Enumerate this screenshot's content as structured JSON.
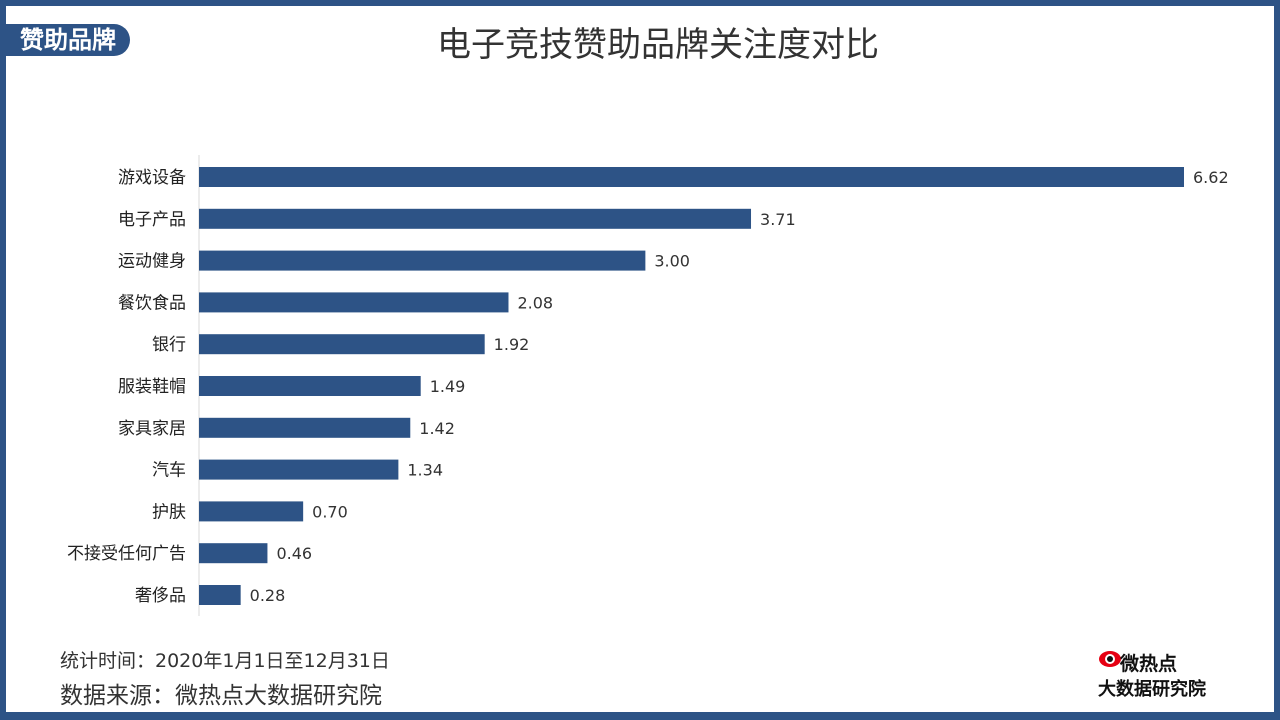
{
  "header": {
    "tag": "赞助品牌",
    "title": "电子竞技赞助品牌关注度对比"
  },
  "chart_data": {
    "type": "bar",
    "orientation": "horizontal",
    "title": "电子竞技赞助品牌关注度对比",
    "categories": [
      "游戏设备",
      "电子产品",
      "运动健身",
      "餐饮食品",
      "银行",
      "服装鞋帽",
      "家具家居",
      "汽车",
      "护肤",
      "不接受任何广告",
      "奢侈品"
    ],
    "values": [
      6.62,
      3.71,
      3.0,
      2.08,
      1.92,
      1.49,
      1.42,
      1.34,
      0.7,
      0.46,
      0.28
    ],
    "value_labels": [
      "6.62",
      "3.71",
      "3.00",
      "2.08",
      "1.92",
      "1.49",
      "1.42",
      "1.34",
      "0.70",
      "0.46",
      "0.28"
    ],
    "xlim": [
      0,
      6.62
    ],
    "grid": false,
    "bar_color": "#2d5386"
  },
  "footer": {
    "time": "统计时间：2020年1月1日至12月31日",
    "source": "数据来源：微热点大数据研究院"
  },
  "logo": {
    "name": "微热点",
    "subtitle": "大数据研究院"
  },
  "colors": {
    "primary": "#2d5386",
    "text": "#333333",
    "logo_red": "#e60012"
  }
}
